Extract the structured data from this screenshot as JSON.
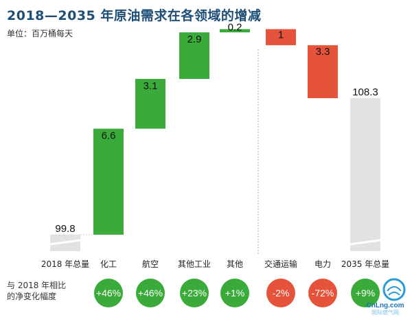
{
  "header": {
    "title": "2018—2035 年原油需求在各领域的增减",
    "unit": "单位：百万桶每天"
  },
  "chart_data": {
    "type": "bar",
    "subtype": "waterfall",
    "title": "2018—2035 年原油需求在各领域的增减",
    "ylabel": "单位：百万桶每天",
    "categories": [
      "2018 年总量",
      "化工",
      "航空",
      "其他工业",
      "其他",
      "交通运输",
      "电力",
      "2035 年总量"
    ],
    "value_labels": [
      "99.8",
      "6.6",
      "3.1",
      "2.9",
      "0.2",
      "1",
      "3.3",
      "108.3"
    ],
    "values": [
      99.8,
      6.6,
      3.1,
      2.9,
      0.2,
      -1,
      -3.3,
      108.3
    ],
    "kinds": [
      "total",
      "increase",
      "increase",
      "increase",
      "increase",
      "decrease",
      "decrease",
      "total"
    ],
    "net_change_label": "与 2018 年相比\n的净变化幅度",
    "net_change": [
      "+46%",
      "+46%",
      "+23%",
      "+1%",
      "-2%",
      "-72%",
      "+9%"
    ],
    "net_change_kinds": [
      "increase",
      "increase",
      "increase",
      "increase",
      "decrease",
      "decrease",
      "increase"
    ],
    "colors": {
      "increase": "#3aab3a",
      "decrease": "#e5533a",
      "total": "#e2e2e2",
      "title": "#1d4e78"
    }
  },
  "watermark": {
    "text": "CnLng.com",
    "subtext": "国际燃气网"
  }
}
